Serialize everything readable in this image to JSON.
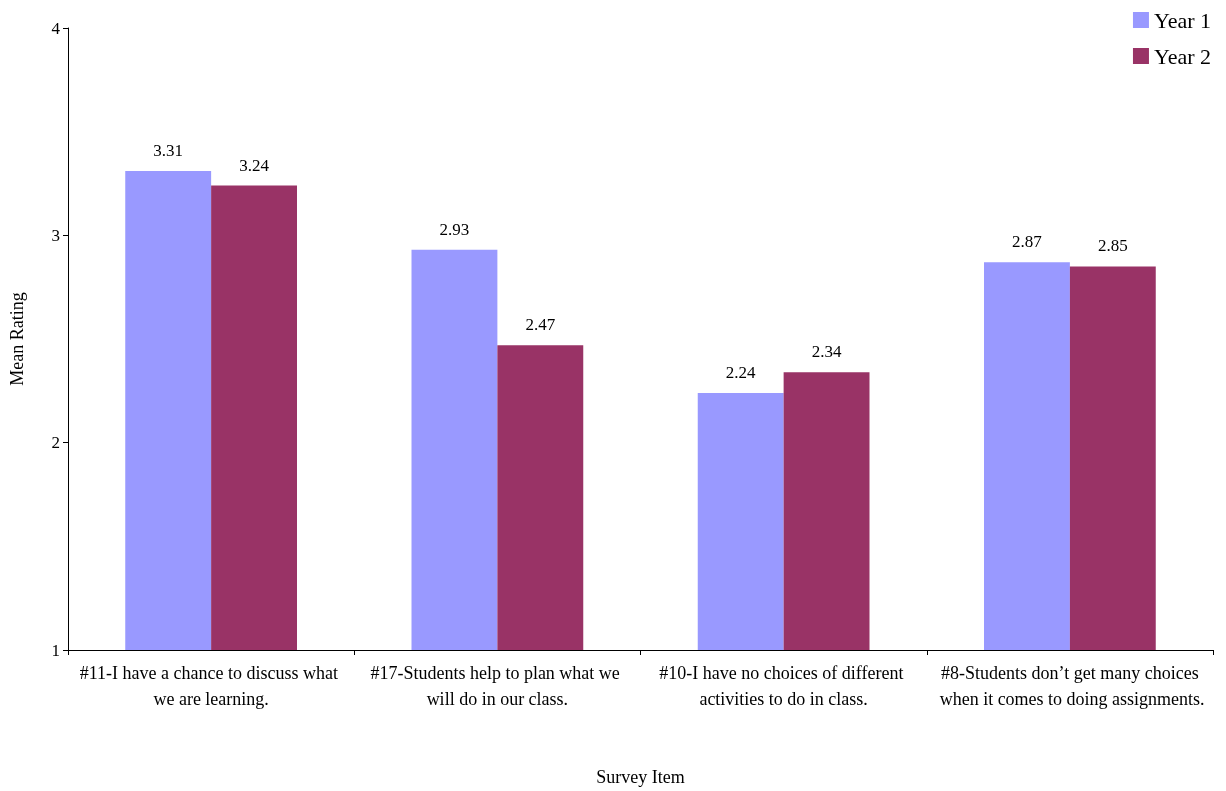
{
  "chart_data": {
    "type": "bar",
    "xlabel": "Survey Item",
    "ylabel": "Mean Rating",
    "categories": [
      "#11-I have a chance to discuss what we are learning.",
      "#17-Students help to plan what we will do in our class.",
      "#10-I have no choices of different activities to do in class.",
      "#8-Students don’t get many choices when it comes to doing assignments."
    ],
    "series": [
      {
        "name": "Year 1",
        "color": "#9999ff",
        "values": [
          3.31,
          2.93,
          2.24,
          2.87
        ]
      },
      {
        "name": "Year 2",
        "color": "#993366",
        "values": [
          3.24,
          2.47,
          2.34,
          2.85
        ]
      }
    ],
    "ylim": [
      1,
      4
    ],
    "yticks": [
      1,
      2,
      3,
      4
    ],
    "data_labels": true,
    "grid": false,
    "legend": "top right"
  }
}
